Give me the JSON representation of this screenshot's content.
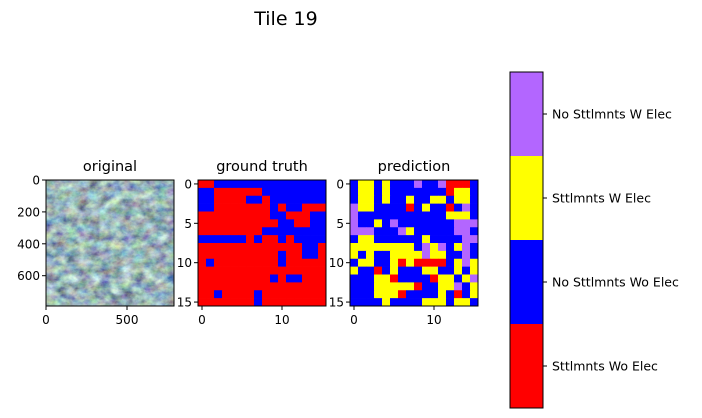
{
  "figure_title": "Tile 19",
  "chart_data": [
    {
      "type": "image",
      "title": "original",
      "xticks": [
        0,
        500
      ],
      "yticks": [
        0,
        200,
        400,
        600
      ],
      "xlim": [
        0,
        790
      ],
      "ylim": [
        790,
        0
      ]
    },
    {
      "type": "heatmap",
      "title": "ground truth",
      "xticks": [
        0,
        10
      ],
      "yticks": [
        0,
        5,
        10,
        15
      ],
      "xlim": [
        -0.5,
        15.5
      ],
      "ylim": [
        15.5,
        -0.5
      ],
      "grid": [
        "0011111111111111",
        "1100000011111111",
        "1100001101111111",
        "1100000001011000",
        "0000000001100011",
        "0000000000110011",
        "0000000011111111",
        "1111110100101111",
        "0000000000000110",
        "0000000000100110",
        "0100000000100000",
        "0000000000000000",
        "0000000001011000",
        "0000000000000000",
        "0010000100000000",
        "0000000100000000"
      ]
    },
    {
      "type": "heatmap",
      "title": "prediction",
      "xticks": [
        0,
        10
      ],
      "yticks": [
        0,
        5,
        10,
        15
      ],
      "xlim": [
        -0.5,
        15.5
      ],
      "ylim": [
        15.5,
        -0.5
      ],
      "grid": [
        "1221211131130001",
        "1221211111110221",
        "1221211211221221",
        "3221111012110131",
        "3111111111112221",
        "3112131111111333",
        "3331113211111331",
        "1221111112111133",
        "2222222213231231",
        "2121122223221131",
        "1221120200001232",
        "2110121112211212",
        "1112201111022123",
        "1112222201122312",
        "1112220111121012",
        "1111211112221221"
      ]
    }
  ],
  "legend": {
    "classes": [
      {
        "label": "No Sttlmnts W Elec",
        "color": "#b366ff"
      },
      {
        "label": "Sttlmnts W Elec",
        "color": "#ffff00"
      },
      {
        "label": "No Sttlmnts Wo Elec",
        "color": "#0000ff"
      },
      {
        "label": "Sttlmnts Wo Elec",
        "color": "#ff0000"
      }
    ]
  },
  "class_colors": [
    "#ff0000",
    "#0000ff",
    "#ffff00",
    "#b366ff"
  ]
}
